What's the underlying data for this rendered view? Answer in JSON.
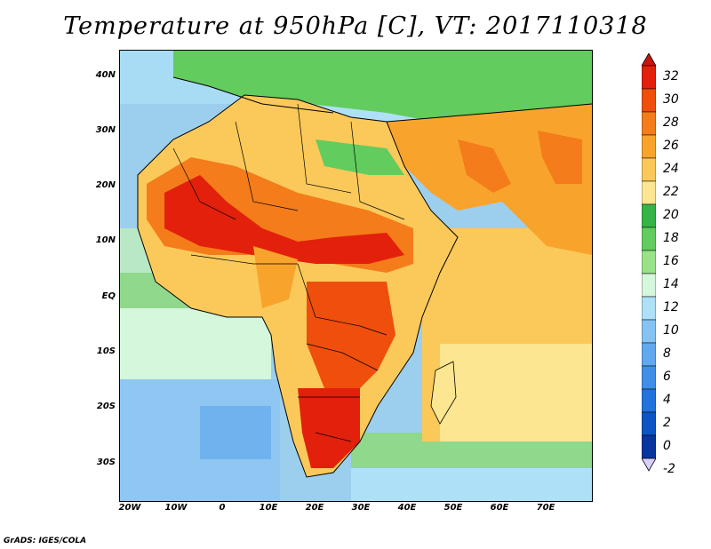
{
  "title": "Temperature at 950hPa [C], VT: 2017110318",
  "credit": "GrADS: IGES/COLA",
  "map": {
    "lon_range": [
      -22,
      80
    ],
    "lat_range": [
      -37,
      45
    ],
    "lat_ticks": [
      {
        "label": "40N",
        "value": 40
      },
      {
        "label": "30N",
        "value": 30
      },
      {
        "label": "20N",
        "value": 20
      },
      {
        "label": "10N",
        "value": 10
      },
      {
        "label": "EQ",
        "value": 0
      },
      {
        "label": "10S",
        "value": -10
      },
      {
        "label": "20S",
        "value": -20
      },
      {
        "label": "30S",
        "value": -30
      }
    ],
    "lon_ticks": [
      {
        "label": "20W",
        "value": -20
      },
      {
        "label": "10W",
        "value": -10
      },
      {
        "label": "0",
        "value": 0
      },
      {
        "label": "10E",
        "value": 10
      },
      {
        "label": "20E",
        "value": 20
      },
      {
        "label": "30E",
        "value": 30
      },
      {
        "label": "40E",
        "value": 40
      },
      {
        "label": "50E",
        "value": 50
      },
      {
        "label": "60E",
        "value": 60
      },
      {
        "label": "70E",
        "value": 70
      }
    ]
  },
  "colorbar": {
    "levels": [
      "32",
      "30",
      "28",
      "26",
      "24",
      "22",
      "20",
      "18",
      "16",
      "14",
      "12",
      "10",
      "8",
      "6",
      "4",
      "2",
      "0",
      "-2"
    ],
    "colors": [
      "#e2200b",
      "#ef4e0c",
      "#f47c1a",
      "#f8a42c",
      "#fbc95a",
      "#fde691",
      "#35b447",
      "#62cc5e",
      "#99e28a",
      "#d5f7dc",
      "#aee0f7",
      "#86c3f2",
      "#61a9ee",
      "#3f8fe6",
      "#2273dc",
      "#0c55c5",
      "#06369e",
      "#ddd0f8"
    ]
  }
}
